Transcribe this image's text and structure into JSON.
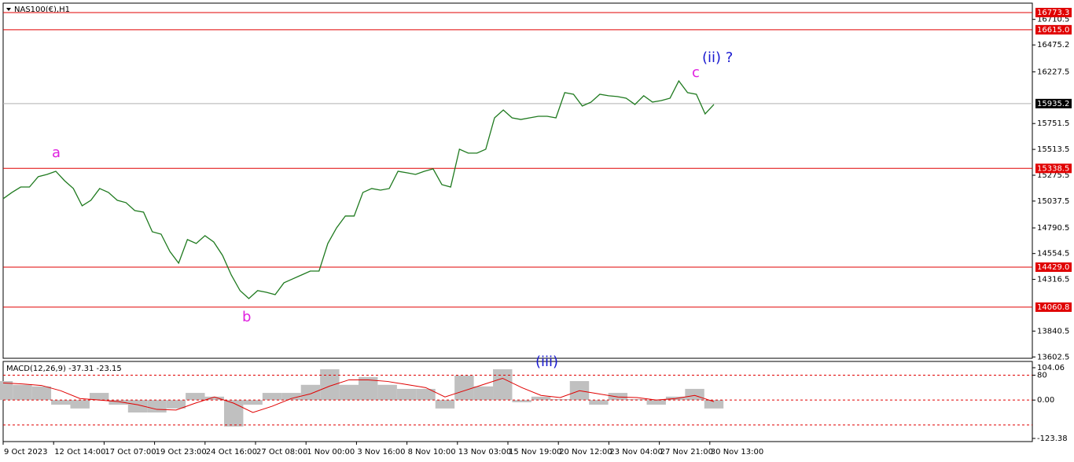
{
  "chart_data": [
    {
      "type": "line",
      "title": "NAS100(€),H1",
      "color": "#1f7a1f",
      "values": [
        15059,
        15117,
        15167,
        15167,
        15262,
        15283,
        15312,
        15225,
        15153,
        14994,
        15045,
        15153,
        15117,
        15045,
        15023,
        14950,
        14936,
        14755,
        14733,
        14574,
        14466,
        14683,
        14647,
        14719,
        14661,
        14538,
        14357,
        14213,
        14140,
        14213,
        14198,
        14176,
        14285,
        14321,
        14357,
        14393,
        14393,
        14647,
        14791,
        14900,
        14900,
        15117,
        15153,
        15138,
        15153,
        15312,
        15298,
        15283,
        15312,
        15334,
        15189,
        15167,
        15515,
        15479,
        15479,
        15515,
        15804,
        15876,
        15804,
        15789,
        15804,
        15818,
        15818,
        15804,
        16036,
        16021,
        15913,
        15949,
        16021,
        16007,
        16000,
        15985,
        15927,
        16007,
        15949,
        15963,
        15985,
        16144,
        16036,
        16021,
        15840,
        15927
      ],
      "x_labels": [
        "9 Oct 2023",
        "12 Oct 14:00",
        "17 Oct 07:00",
        "19 Oct 23:00",
        "24 Oct 16:00",
        "27 Oct 08:00",
        "1 Nov 00:00",
        "3 Nov 16:00",
        "8 Nov 10:00",
        "13 Nov 03:00",
        "15 Nov 19:00",
        "20 Nov 12:00",
        "23 Nov 04:00",
        "27 Nov 21:00",
        "30 Nov 13:00"
      ],
      "ylim": [
        13590,
        16860
      ],
      "yticks": [
        16710.5,
        16475.2,
        16227.5,
        15751.5,
        15513.5,
        15275.5,
        15037.5,
        14790.5,
        14554.5,
        14316.5,
        13840.5,
        13602.5
      ],
      "hlines": [
        16773.3,
        {
          "value": 16615,
          "label": "16615.0"
        },
        15338.5,
        {
          "value": 14429,
          "label": "14429.0"
        },
        14060.8
      ],
      "hline_color": "#e00000",
      "price_line": 15935.2,
      "annotations": [
        "a",
        "b",
        "c",
        "(ii) ?",
        "(iii)"
      ]
    },
    {
      "type": "macd",
      "title": "MACD(12,26,9) -37.31 -23.15",
      "values": [
        61,
        49,
        44,
        -15,
        -27,
        23,
        -15,
        -40,
        -40,
        -27,
        23,
        11,
        -85,
        -15,
        23,
        23,
        49,
        99,
        49,
        74,
        49,
        36,
        36,
        -27,
        79,
        44,
        99,
        -7,
        11,
        3,
        61,
        -15,
        23,
        3,
        -15,
        11,
        36,
        -27
      ],
      "color": "#c0c0c0",
      "signal": [
        55,
        52,
        47,
        30,
        5,
        0,
        -5,
        -15,
        -30,
        -32,
        -10,
        10,
        -10,
        -40,
        -20,
        5,
        20,
        45,
        65,
        65,
        60,
        50,
        40,
        10,
        30,
        50,
        70,
        40,
        15,
        8,
        30,
        20,
        10,
        8,
        0,
        5,
        15,
        -5
      ],
      "signal_color": "#e00000",
      "ylim": [
        -123.38,
        104.06
      ],
      "yticks": [
        104.06,
        80,
        {
          "value": 0,
          "label": "0.00"
        },
        -123.38
      ],
      "levels": [
        80,
        0,
        -80
      ]
    }
  ]
}
